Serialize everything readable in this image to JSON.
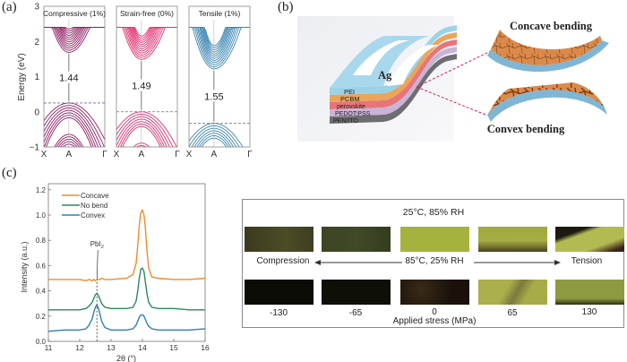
{
  "panel_labels": {
    "a": "(a)",
    "b": "(b)",
    "c": "(c)"
  },
  "chart_data": [
    {
      "type": "line",
      "subtype": "band-structure",
      "ylabel": "Energy (eV)",
      "ylim": [
        -1,
        3
      ],
      "yticks": [
        "3",
        "2",
        "1",
        "0",
        "−1"
      ],
      "ytick_values": [
        3,
        2,
        1,
        0,
        -1
      ],
      "xticks": [
        "X",
        "A",
        "Γ"
      ],
      "panels": [
        {
          "title": "Compressive (1%)",
          "band_gap_label": "1.44",
          "band_gap": 1.44,
          "vbm": 0.25,
          "color": "#8e1f62"
        },
        {
          "title": "Strain-free (0%)",
          "band_gap_label": "1.49",
          "band_gap": 1.49,
          "vbm": 0.0,
          "color": "#e2306f"
        },
        {
          "title": "Tensile (1%)",
          "band_gap_label": "1.55",
          "band_gap": 1.55,
          "vbm": -0.33,
          "color": "#3d86b2"
        }
      ],
      "grid": false
    },
    {
      "type": "line",
      "xlabel": "2θ (°)",
      "ylabel": "Intensity (a.u.)",
      "xlim": [
        11,
        16
      ],
      "ylim": [
        0,
        1.25
      ],
      "xticks": [
        "11",
        "12",
        "13",
        "14",
        "15",
        "16"
      ],
      "xtick_values": [
        11,
        12,
        13,
        14,
        15,
        16
      ],
      "yticks": [
        "0.0",
        "0.2",
        "0.4",
        "0.6",
        "0.8",
        "1.0",
        "1.2"
      ],
      "ytick_values": [
        0,
        0.2,
        0.4,
        0.6,
        0.8,
        1.0,
        1.2
      ],
      "legend_position": "top-left",
      "annotation": {
        "text": "PbI",
        "subscript": "2",
        "x": 12.55
      },
      "x": [
        11,
        11.5,
        12,
        12.2,
        12.3,
        12.4,
        12.45,
        12.5,
        12.55,
        12.6,
        12.65,
        12.7,
        12.8,
        13,
        13.5,
        13.7,
        13.8,
        13.85,
        13.9,
        13.95,
        14,
        14.05,
        14.1,
        14.15,
        14.2,
        14.3,
        14.5,
        15,
        15.5,
        16
      ],
      "series": [
        {
          "name": "Concave",
          "color": "#f08a30",
          "values": [
            0.49,
            0.49,
            0.49,
            0.48,
            0.49,
            0.48,
            0.49,
            0.48,
            0.49,
            0.49,
            0.49,
            0.5,
            0.49,
            0.49,
            0.5,
            0.53,
            0.62,
            0.76,
            0.92,
            1.02,
            1.04,
            1.0,
            0.88,
            0.7,
            0.58,
            0.51,
            0.5,
            0.49,
            0.49,
            0.5
          ]
        },
        {
          "name": "No bend",
          "color": "#2a8a5a",
          "values": [
            0.25,
            0.25,
            0.25,
            0.26,
            0.28,
            0.31,
            0.34,
            0.37,
            0.38,
            0.36,
            0.33,
            0.3,
            0.27,
            0.26,
            0.26,
            0.27,
            0.32,
            0.4,
            0.5,
            0.57,
            0.58,
            0.55,
            0.46,
            0.37,
            0.31,
            0.27,
            0.26,
            0.26,
            0.25,
            0.25
          ]
        },
        {
          "name": "Convex",
          "color": "#2f7fb8",
          "values": [
            0.08,
            0.09,
            0.09,
            0.1,
            0.13,
            0.18,
            0.23,
            0.27,
            0.29,
            0.26,
            0.21,
            0.16,
            0.11,
            0.09,
            0.09,
            0.1,
            0.13,
            0.16,
            0.19,
            0.21,
            0.21,
            0.2,
            0.17,
            0.14,
            0.12,
            0.1,
            0.09,
            0.09,
            0.09,
            0.1
          ]
        }
      ],
      "grid": false
    }
  ],
  "device": {
    "layers": [
      "Ag",
      "PEI",
      "PCBM",
      "perovskite",
      "PEDOT:PSS",
      "PEN/ITO"
    ],
    "concave_label": "Concave bending",
    "convex_label": "Convex bending"
  },
  "stress": {
    "top_condition": "25°C, 85% RH",
    "middle_condition": "85°C, 25% RH",
    "left_label": "Compression",
    "right_label": "Tension",
    "values": [
      "-130",
      "-65",
      "0",
      "65",
      "130"
    ],
    "axis_label": "Applied stress (MPa)"
  }
}
